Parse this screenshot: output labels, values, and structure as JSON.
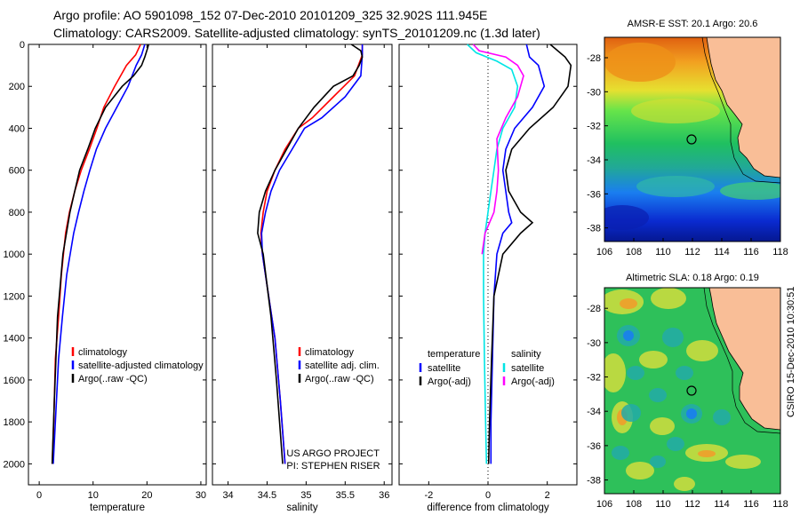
{
  "header": {
    "title_line1": "Argo profile: AO 5901098_152 07-Dec-2010 20101209_325 32.902S 111.945E",
    "title_line2": "Climatology: CARS2009. Satellite-adjusted climatology: synTS_20101209.nc (1.3d later)"
  },
  "side_label": "CSIRO 15-Dec-2010 10:30:51",
  "colors": {
    "climatology": "#ff0000",
    "satellite": "#0000ff",
    "argo": "#000000",
    "satellite_salinity": "#00e5e5",
    "argo_adj_salinity": "#ff00ff",
    "land": "#f9be97"
  },
  "chart_data": [
    {
      "id": "temperature",
      "type": "line",
      "xlabel": "temperature",
      "ylabel": "",
      "xlim": [
        -2,
        31
      ],
      "ylim": [
        2100,
        0
      ],
      "xticks": [
        0,
        10,
        20,
        30
      ],
      "yticks": [
        0,
        200,
        400,
        600,
        800,
        1000,
        1200,
        1400,
        1600,
        1800,
        2000
      ],
      "legend": [
        "climatology",
        "satellite-adjusted climatology",
        "Argo(..raw -QC)"
      ],
      "legend_position": "lower-right",
      "series": [
        {
          "name": "climatology",
          "color": "#ff0000",
          "x": [
            18.8,
            17.9,
            16.2,
            14.0,
            12.0,
            10.7,
            9.3,
            7.8,
            6.6,
            5.6,
            4.9,
            4.1,
            3.6,
            3.0,
            2.7,
            2.4
          ],
          "y": [
            0,
            50,
            100,
            200,
            300,
            400,
            500,
            600,
            700,
            800,
            900,
            1100,
            1300,
            1500,
            1800,
            2000
          ]
        },
        {
          "name": "satellite-adjusted climatology",
          "color": "#0000ff",
          "x": [
            19.6,
            19.0,
            18.0,
            16.5,
            14.4,
            12.3,
            10.6,
            9.4,
            8.3,
            7.3,
            6.4,
            5.1,
            4.3,
            3.6,
            3.0,
            2.6
          ],
          "y": [
            0,
            50,
            100,
            200,
            300,
            400,
            500,
            600,
            700,
            800,
            900,
            1100,
            1300,
            1500,
            1800,
            2000
          ]
        },
        {
          "name": "Argo(..raw -QC)",
          "color": "#000000",
          "x": [
            20.3,
            20.1,
            19.6,
            19.0,
            17.5,
            15.4,
            12.3,
            10.4,
            9.0,
            7.5,
            6.6,
            5.7,
            4.4,
            3.4,
            2.8,
            2.4
          ],
          "y": [
            0,
            20,
            60,
            100,
            150,
            200,
            300,
            400,
            500,
            600,
            700,
            800,
            1000,
            1300,
            1700,
            2000
          ]
        }
      ]
    },
    {
      "id": "salinity",
      "type": "line",
      "xlabel": "salinity",
      "ylabel": "",
      "xlim": [
        33.8,
        36.1
      ],
      "ylim": [
        2100,
        0
      ],
      "xticks": [
        34,
        34.5,
        35,
        35.5,
        36
      ],
      "legend": [
        "climatology",
        "satellite adj. clim.",
        "Argo(..raw -QC)"
      ],
      "legend_position": "lower-right",
      "annotations": [
        "US ARGO PROJECT",
        "PI: STEPHEN RISER"
      ],
      "series": [
        {
          "name": "climatology",
          "color": "#ff0000",
          "x": [
            35.72,
            35.72,
            35.62,
            35.35,
            35.08,
            34.9,
            34.73,
            34.6,
            34.5,
            34.45,
            34.42,
            34.44,
            34.52,
            34.6,
            34.67,
            34.73
          ],
          "y": [
            0,
            50,
            150,
            250,
            350,
            400,
            500,
            600,
            700,
            800,
            900,
            1000,
            1200,
            1400,
            1700,
            2000
          ]
        },
        {
          "name": "satellite adj. clim.",
          "color": "#0000ff",
          "x": [
            35.72,
            35.72,
            35.7,
            35.5,
            35.2,
            34.98,
            34.82,
            34.66,
            34.55,
            34.48,
            34.43,
            34.44,
            34.52,
            34.6,
            34.67,
            34.73
          ],
          "y": [
            0,
            50,
            150,
            250,
            350,
            400,
            500,
            600,
            700,
            800,
            900,
            1000,
            1200,
            1400,
            1700,
            2000
          ]
        },
        {
          "name": "Argo(..raw -QC)",
          "color": "#000000",
          "x": [
            35.58,
            35.7,
            35.72,
            35.68,
            35.6,
            35.35,
            35.1,
            34.9,
            34.75,
            34.6,
            34.48,
            34.4,
            34.38,
            34.45,
            34.55,
            34.62,
            34.7
          ],
          "y": [
            0,
            30,
            60,
            100,
            150,
            200,
            300,
            400,
            500,
            600,
            700,
            800,
            900,
            1000,
            1300,
            1600,
            2000
          ]
        }
      ]
    },
    {
      "id": "difference",
      "type": "line",
      "xlabel": "difference from climatology",
      "ylabel": "",
      "xlim": [
        -3,
        3
      ],
      "ylim": [
        2100,
        0
      ],
      "xticks": [
        -2,
        0,
        2
      ],
      "legend_left_title": "temperature",
      "legend_right_title": "salinity",
      "legend_left": [
        "satellite",
        "Argo(-adj)"
      ],
      "legend_right": [
        "satellite",
        "Argo(-adj)"
      ],
      "legend_position": "lower-center",
      "series": [
        {
          "name": "temperature satellite",
          "color": "#0000ff",
          "x": [
            1.3,
            1.4,
            1.7,
            1.9,
            1.5,
            0.9,
            0.6,
            0.5,
            0.6,
            0.7,
            0.8,
            0.5,
            0.3,
            0.2,
            0.15,
            0.1,
            0.1
          ],
          "y": [
            0,
            60,
            100,
            200,
            300,
            400,
            500,
            600,
            700,
            800,
            850,
            900,
            1000,
            1200,
            1500,
            1800,
            2000
          ]
        },
        {
          "name": "temperature Argo(-adj)",
          "color": "#000000",
          "x": [
            2.1,
            2.6,
            2.8,
            2.7,
            2.2,
            1.4,
            0.8,
            0.6,
            0.7,
            1.1,
            1.5,
            1.1,
            0.5,
            0.2,
            0.12,
            0.05,
            0.02
          ],
          "y": [
            0,
            60,
            100,
            200,
            300,
            400,
            500,
            600,
            700,
            800,
            850,
            900,
            1000,
            1200,
            1500,
            1800,
            2000
          ]
        },
        {
          "name": "salinity satellite",
          "color": "#00e5e5",
          "x": [
            -0.7,
            -0.4,
            0.3,
            0.8,
            1.0,
            0.9,
            0.5,
            0.3,
            0.2,
            0.1,
            0.0,
            -0.1,
            -0.15,
            -0.15,
            -0.12,
            -0.08,
            -0.05
          ],
          "y": [
            0,
            40,
            80,
            120,
            200,
            300,
            400,
            500,
            600,
            700,
            800,
            900,
            1000,
            1200,
            1500,
            1800,
            2000
          ]
        },
        {
          "name": "salinity Argo(-adj)",
          "color": "#ff00ff",
          "x": [
            -0.5,
            -0.3,
            0.6,
            1.0,
            1.2,
            1.0,
            0.6,
            0.3,
            0.35,
            0.3,
            0.2,
            -0.1,
            -0.2
          ],
          "y": [
            0,
            30,
            60,
            100,
            150,
            250,
            350,
            450,
            600,
            700,
            800,
            900,
            1000
          ]
        }
      ]
    },
    {
      "id": "sst_map",
      "type": "heatmap",
      "title": "AMSR-E SST: 20.1 Argo: 20.6",
      "xlim": [
        106,
        118
      ],
      "ylim": [
        -38.8,
        -26.8
      ],
      "xticks": [
        106,
        108,
        110,
        112,
        114,
        116,
        118
      ],
      "yticks": [
        -28,
        -30,
        -32,
        -34,
        -36,
        -38
      ],
      "marker": {
        "lon": 111.945,
        "lat": -32.902
      }
    },
    {
      "id": "sla_map",
      "type": "heatmap",
      "title": "Altimetric SLA: 0.18 Argo: 0.19",
      "xlim": [
        106,
        118
      ],
      "ylim": [
        -38.8,
        -26.8
      ],
      "xticks": [
        106,
        108,
        110,
        112,
        114,
        116,
        118
      ],
      "yticks": [
        -28,
        -30,
        -32,
        -34,
        -36,
        -38
      ],
      "marker": {
        "lon": 111.945,
        "lat": -32.902
      }
    }
  ]
}
